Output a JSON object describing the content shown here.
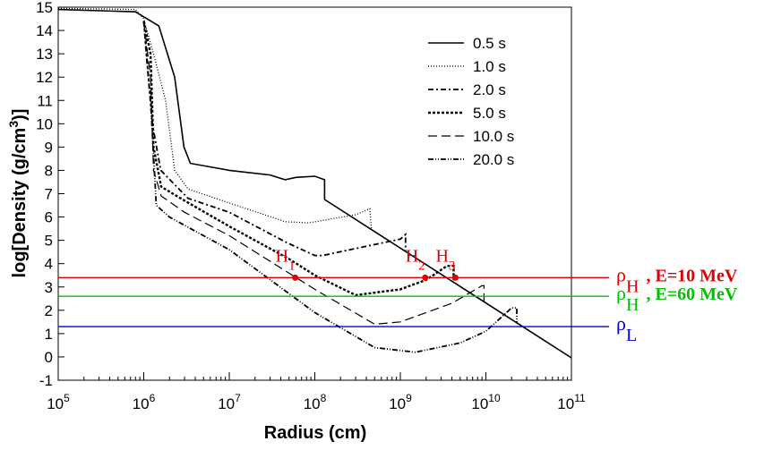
{
  "chart_data": {
    "type": "line",
    "x_label": "Radius (cm)",
    "y_label": "log[Density (g/cm",
    "y_label_sup": "3",
    "y_label_end": ")]",
    "xscale": "log",
    "xlim": [
      100000,
      100000000000
    ],
    "xticks": [
      {
        "value": 100000,
        "label": "10",
        "power": "5"
      },
      {
        "value": 1000000,
        "label": "10",
        "power": "6"
      },
      {
        "value": 10000000,
        "label": "10",
        "power": "7"
      },
      {
        "value": 100000000,
        "label": "10",
        "power": "8"
      },
      {
        "value": 1000000000,
        "label": "10",
        "power": "9"
      },
      {
        "value": 10000000000,
        "label": "10",
        "power": "10"
      },
      {
        "value": 100000000000,
        "label": "10",
        "power": "11"
      }
    ],
    "ylim": [
      -1,
      15
    ],
    "yticks": [
      -1,
      0,
      1,
      2,
      3,
      4,
      5,
      6,
      7,
      8,
      9,
      10,
      11,
      12,
      13,
      14,
      15
    ],
    "legend": "upper right",
    "series": [
      {
        "name": "0.5 s",
        "color": "#000000",
        "dash": "none",
        "width": 1.6,
        "x": [
          100000,
          800000,
          1500000,
          2300000,
          2950000,
          3500000,
          10000000,
          30000000,
          45000000,
          60000000,
          100000000,
          130000000,
          130000000,
          100000000000
        ],
        "values": [
          14.9,
          14.8,
          14.2,
          12,
          9,
          8.3,
          8.0,
          7.8,
          7.6,
          7.7,
          7.75,
          7.6,
          6.75,
          -0.04
        ]
      },
      {
        "name": "1.0 s",
        "color": "#000000",
        "dash": "1,2",
        "width": 1.3,
        "x": [
          100000,
          800000,
          1000000,
          1300000,
          1800000,
          2300000,
          3300000,
          10000000,
          45000000,
          85000000,
          300000000,
          440000000,
          460000000
        ],
        "values": [
          14.95,
          14.9,
          14.5,
          13,
          11,
          8,
          7.2,
          6.6,
          5.8,
          5.75,
          6.1,
          6.35,
          5.45
        ]
      },
      {
        "name": "2.0 s",
        "color": "#000000",
        "dash": "6,3,2,3",
        "width": 1.8,
        "x": [
          1000000,
          1070000,
          1260000,
          1580000,
          3300000,
          10000000,
          47000000,
          100000000,
          123000000,
          1000000000,
          1150000000,
          1150000000
        ],
        "values": [
          14.4,
          13,
          10,
          8,
          6.8,
          6.2,
          4.9,
          4.35,
          4.35,
          5.05,
          5.25,
          4.5
        ]
      },
      {
        "name": "5.0 s",
        "color": "#000000",
        "dash": "3,2",
        "width": 2.4,
        "x": [
          1000000,
          1200000,
          1300000,
          1600000,
          3000000,
          10000000,
          50000000,
          100000000,
          300000000,
          1000000000,
          2000000000,
          3500000000,
          4200000000,
          4200000000
        ],
        "values": [
          14.4,
          13,
          9,
          7.3,
          6.7,
          5.6,
          4.2,
          3.5,
          2.65,
          2.9,
          3.3,
          3.9,
          3.9,
          3.19
        ]
      },
      {
        "name": "10.0 s",
        "color": "#000000",
        "dash": "10,5",
        "width": 1.2,
        "x": [
          1000000,
          1200000,
          1300000,
          1600000,
          3000000,
          10000000,
          100000000,
          500000000,
          1000000000,
          4000000000,
          9000000000,
          9500000000,
          9500000000
        ],
        "values": [
          14.4,
          12,
          8,
          6.9,
          6.2,
          5.2,
          2.9,
          1.4,
          1.5,
          2.3,
          3.05,
          3.05,
          2.35
        ]
      },
      {
        "name": "20.0 s",
        "color": "#000000",
        "dash": "6,2,1,2,1,2",
        "width": 1.8,
        "x": [
          1000000,
          1200000,
          1400000,
          2000000,
          10000000,
          100000000,
          500000000,
          1500000000,
          5000000000,
          10000000000,
          20000000000,
          23000000000,
          23000000000
        ],
        "values": [
          14.4,
          11,
          6.5,
          6.0,
          4.6,
          1.9,
          0.4,
          0.2,
          0.6,
          1.1,
          2.1,
          2.1,
          1.45
        ]
      }
    ],
    "thresholds": [
      {
        "value": 3.4,
        "color": "#e00000",
        "label": "ρ",
        "sub": "H",
        "note": ", E=10 MeV"
      },
      {
        "value": 2.6,
        "color": "#00c000",
        "label": "ρ",
        "sub": "H",
        "note": ", E=60 MeV"
      },
      {
        "value": 1.3,
        "color": "#0000e0",
        "label": "ρ",
        "sub": "L"
      }
    ],
    "points": [
      {
        "label": "H",
        "sub": "1",
        "x": 59000000,
        "y": 3.4,
        "color": "#e00000"
      },
      {
        "label": "H",
        "sub": "2",
        "x": 1950000000,
        "y": 3.4,
        "color": "#e00000"
      },
      {
        "label": "H",
        "sub": "3",
        "x": 4400000000,
        "y": 3.4,
        "color": "#e00000"
      }
    ]
  }
}
